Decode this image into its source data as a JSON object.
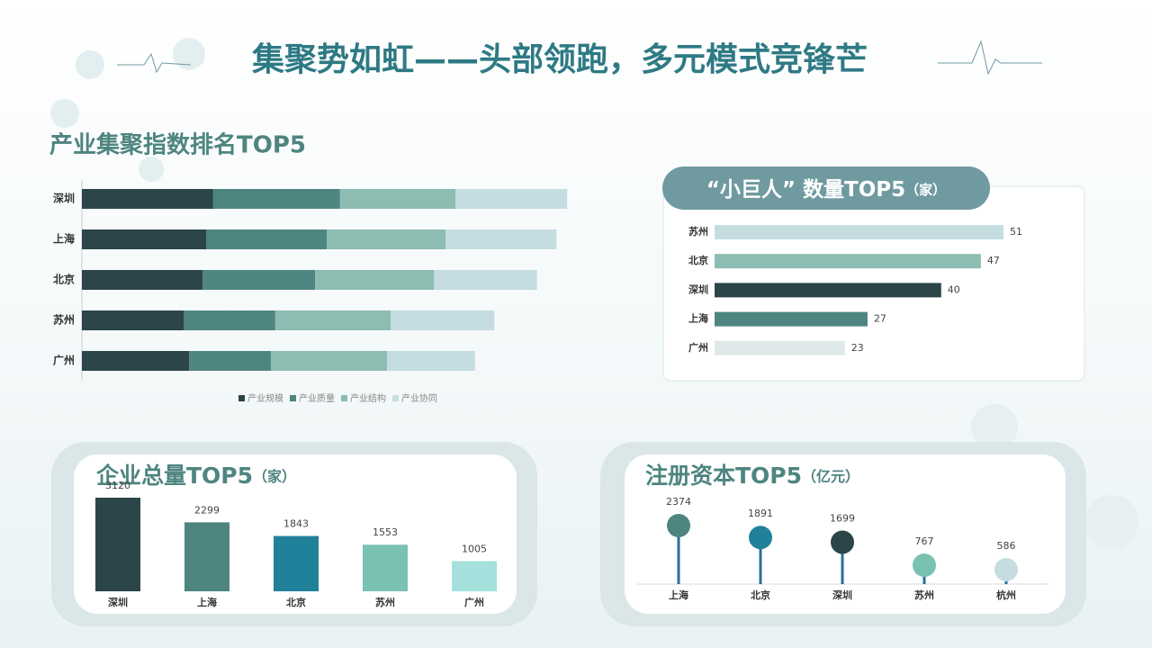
{
  "header": {
    "title": "集聚势如虹——头部领跑，多元模式竞锋芒"
  },
  "chart_data": [
    {
      "type": "stacked-hbar",
      "title": "产业集聚指数排名TOP5",
      "categories": [
        "深圳",
        "上海",
        "北京",
        "苏州",
        "广州"
      ],
      "series": [
        {
          "name": "产业规模",
          "color": "#2b4549",
          "values": [
            14.8,
            14.0,
            13.6,
            11.5,
            12.1
          ]
        },
        {
          "name": "产业质量",
          "color": "#4e8580",
          "values": [
            14.3,
            13.6,
            12.7,
            10.3,
            9.2
          ]
        },
        {
          "name": "产业结构",
          "color": "#8dbcb2",
          "values": [
            13.0,
            13.4,
            13.4,
            13.0,
            13.1
          ]
        },
        {
          "name": "产业协同",
          "color": "#c5dde0",
          "values": [
            12.6,
            12.5,
            11.6,
            11.7,
            9.9
          ]
        }
      ],
      "xlim": [
        0,
        56
      ]
    },
    {
      "type": "hbar",
      "title": "“小巨人” 数量TOP5",
      "unit": "（家）",
      "categories": [
        "苏州",
        "北京",
        "深圳",
        "上海",
        "广州"
      ],
      "values": [
        51,
        47,
        40,
        27,
        23
      ],
      "colors": [
        "#c5dde0",
        "#8dbcb2",
        "#2b4549",
        "#4e8580",
        "#dfe9ea"
      ],
      "xlim": [
        0,
        51
      ]
    },
    {
      "type": "bar",
      "title": "企业总量TOP5",
      "unit": "（家）",
      "categories": [
        "深圳",
        "上海",
        "北京",
        "苏州",
        "广州"
      ],
      "values": [
        3120,
        2299,
        1843,
        1553,
        1005
      ],
      "colors": [
        "#2b4549",
        "#4e8580",
        "#22819a",
        "#79c2b2",
        "#a5e0dc"
      ],
      "ylim": [
        0,
        3120
      ]
    },
    {
      "type": "lollipop",
      "title": "注册资本TOP5",
      "unit": "（亿元）",
      "categories": [
        "上海",
        "北京",
        "深圳",
        "苏州",
        "杭州"
      ],
      "values": [
        2374,
        1891,
        1699,
        767,
        586
      ],
      "colors": [
        "#4e8580",
        "#22819a",
        "#2b4549",
        "#79c2b2",
        "#c5dde0"
      ],
      "ylim": [
        0,
        2374
      ]
    }
  ]
}
